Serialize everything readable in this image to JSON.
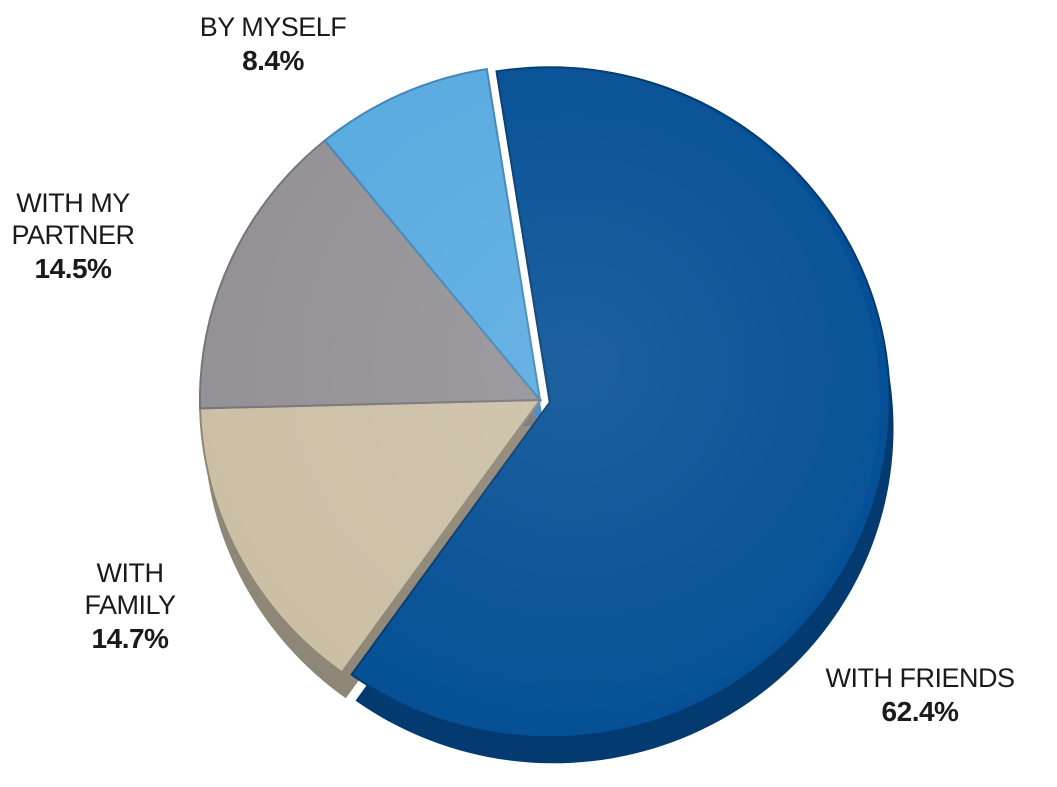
{
  "chart_data": {
    "type": "pie",
    "title": "",
    "slices": [
      {
        "label": "WITH FRIENDS",
        "name_lines": [
          "WITH FRIENDS"
        ],
        "value": 62.4,
        "value_label": "62.4%",
        "color": "#044f95",
        "side_color": "#033a70"
      },
      {
        "label": "WITH FAMILY",
        "name_lines": [
          "WITH",
          "FAMILY"
        ],
        "value": 14.7,
        "value_label": "14.7%",
        "color": "#cbbfa5",
        "side_color": "#8e8676"
      },
      {
        "label": "WITH MY PARTNER",
        "name_lines": [
          "WITH MY",
          "PARTNER"
        ],
        "value": 14.5,
        "value_label": "14.5%",
        "color": "#939196",
        "side_color": "#75747a"
      },
      {
        "label": "BY MYSELF",
        "name_lines": [
          "BY MYSELF"
        ],
        "value": 8.4,
        "value_label": "8.4%",
        "color": "#58aae0",
        "side_color": "#3f86b8"
      }
    ],
    "legend": "none",
    "style": "3d-exploded"
  }
}
